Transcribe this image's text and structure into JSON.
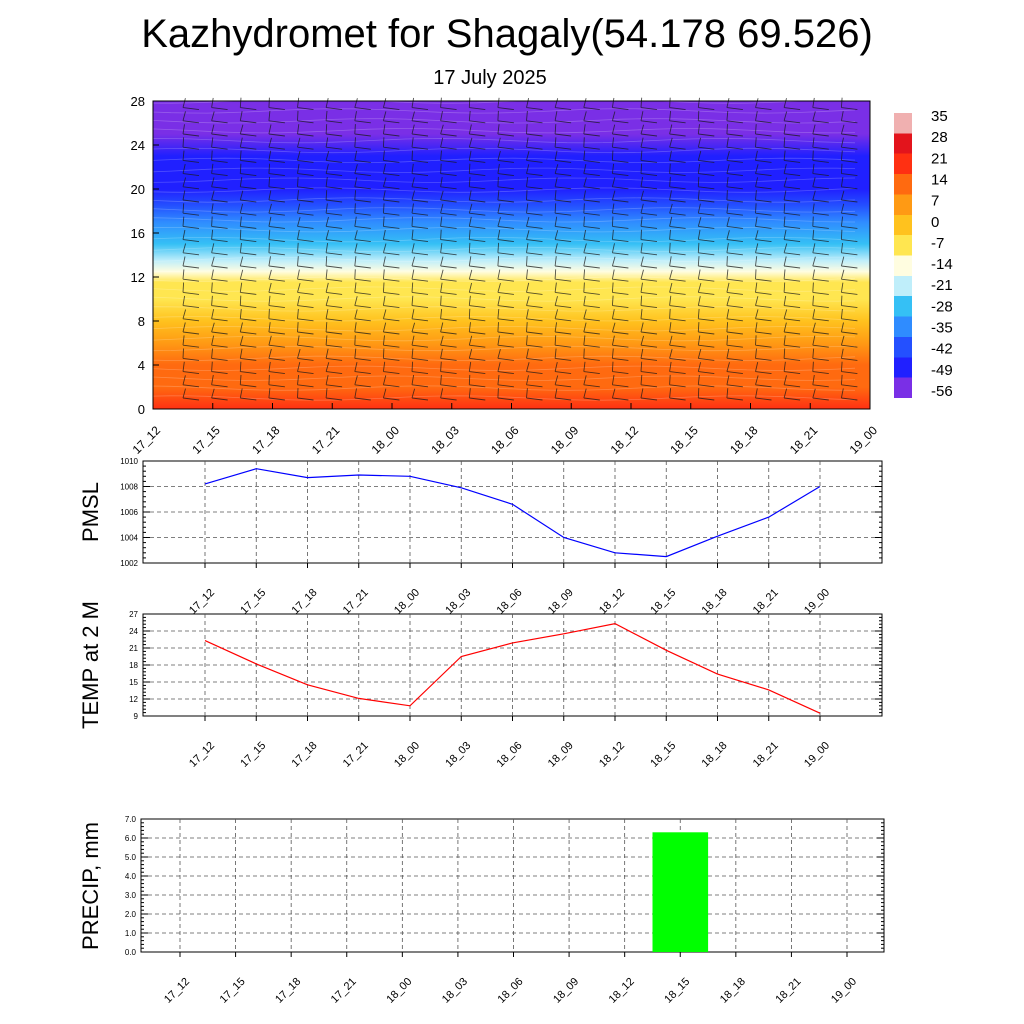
{
  "header": {
    "title": "Kazhydromet for Shagaly(54.178 69.526)",
    "date": "17 July 2025"
  },
  "time_labels": [
    "17_12",
    "17_15",
    "17_18",
    "17_21",
    "18_00",
    "18_03",
    "18_06",
    "18_09",
    "18_12",
    "18_15",
    "18_18",
    "18_21",
    "19_00"
  ],
  "colors": {
    "pmsl_line": "#0000ff",
    "temp_line": "#ff0000",
    "precip_bar": "#00ff00"
  },
  "chart_data": [
    {
      "type": "heatmap",
      "name": "vertical-cross-section",
      "x": [
        "17_12",
        "17_15",
        "17_18",
        "17_21",
        "18_00",
        "18_03",
        "18_06",
        "18_09",
        "18_12",
        "18_15",
        "18_18",
        "18_21",
        "19_00"
      ],
      "y_ticks": [
        0,
        4,
        8,
        12,
        16,
        20,
        24,
        28
      ],
      "ylim": [
        0,
        28
      ],
      "colorbar_labels": [
        "35",
        "28",
        "21",
        "14",
        "7",
        "0",
        "-7",
        "-14",
        "-21",
        "-28",
        "-35",
        "-42",
        "-49",
        "-56"
      ],
      "colorbar_range": [
        -63,
        42
      ],
      "colorbar_colors": [
        "#7a2fe6",
        "#2020ff",
        "#2450ff",
        "#2f8cff",
        "#35c0f5",
        "#bfeefa",
        "#fffde0",
        "#ffe650",
        "#ffc21e",
        "#ff9a14",
        "#ff6a10",
        "#ff3012",
        "#e3141c",
        "#f0b0b0"
      ],
      "overlay": "wind barbs",
      "profile": {
        "levels": [
          0,
          2,
          4,
          6,
          8,
          10,
          11.5,
          12.5,
          13.5,
          15,
          17,
          18.5,
          20,
          23,
          25,
          28
        ],
        "values": [
          24,
          18,
          12,
          7,
          2,
          -4,
          -8,
          -13,
          -20,
          -30,
          -40,
          -47,
          -52,
          -55,
          -60,
          -57
        ]
      }
    },
    {
      "type": "line",
      "name": "pmsl",
      "ylabel": "PMSL",
      "categories": [
        "17_12",
        "17_15",
        "17_18",
        "17_21",
        "18_00",
        "18_03",
        "18_06",
        "18_09",
        "18_12",
        "18_15",
        "18_18",
        "18_21",
        "19_00"
      ],
      "values": [
        1008.2,
        1009.4,
        1008.7,
        1008.9,
        1008.8,
        1007.9,
        1006.6,
        1004.0,
        1002.8,
        1002.5,
        1004.1,
        1005.6,
        1008.0
      ],
      "ylim": [
        1002,
        1010
      ],
      "y_ticks": [
        1002,
        1004,
        1006,
        1008,
        1010
      ],
      "grid": true
    },
    {
      "type": "line",
      "name": "temp",
      "ylabel": "TEMP at 2 M",
      "categories": [
        "17_12",
        "17_15",
        "17_18",
        "17_21",
        "18_00",
        "18_03",
        "18_06",
        "18_09",
        "18_12",
        "18_15",
        "18_18",
        "18_21",
        "19_00"
      ],
      "values": [
        22.3,
        18.2,
        14.5,
        12.1,
        10.8,
        19.5,
        21.9,
        23.5,
        25.3,
        20.6,
        16.4,
        13.6,
        9.5
      ],
      "ylim": [
        9,
        27
      ],
      "y_ticks": [
        9,
        12,
        15,
        18,
        21,
        24,
        27
      ],
      "grid": true
    },
    {
      "type": "bar",
      "name": "precip",
      "ylabel": "PRECIP, mm",
      "categories": [
        "17_12",
        "17_15",
        "17_18",
        "17_21",
        "18_00",
        "18_03",
        "18_06",
        "18_09",
        "18_12",
        "18_15",
        "18_18",
        "18_21",
        "19_00"
      ],
      "values": [
        0,
        0,
        0,
        0,
        0,
        0,
        0,
        0,
        0,
        6.3,
        0,
        0,
        0
      ],
      "ylim": [
        0,
        7
      ],
      "y_ticks": [
        "0.0",
        "1.0",
        "2.0",
        "3.0",
        "4.0",
        "5.0",
        "6.0",
        "7.0"
      ],
      "grid": true
    }
  ]
}
